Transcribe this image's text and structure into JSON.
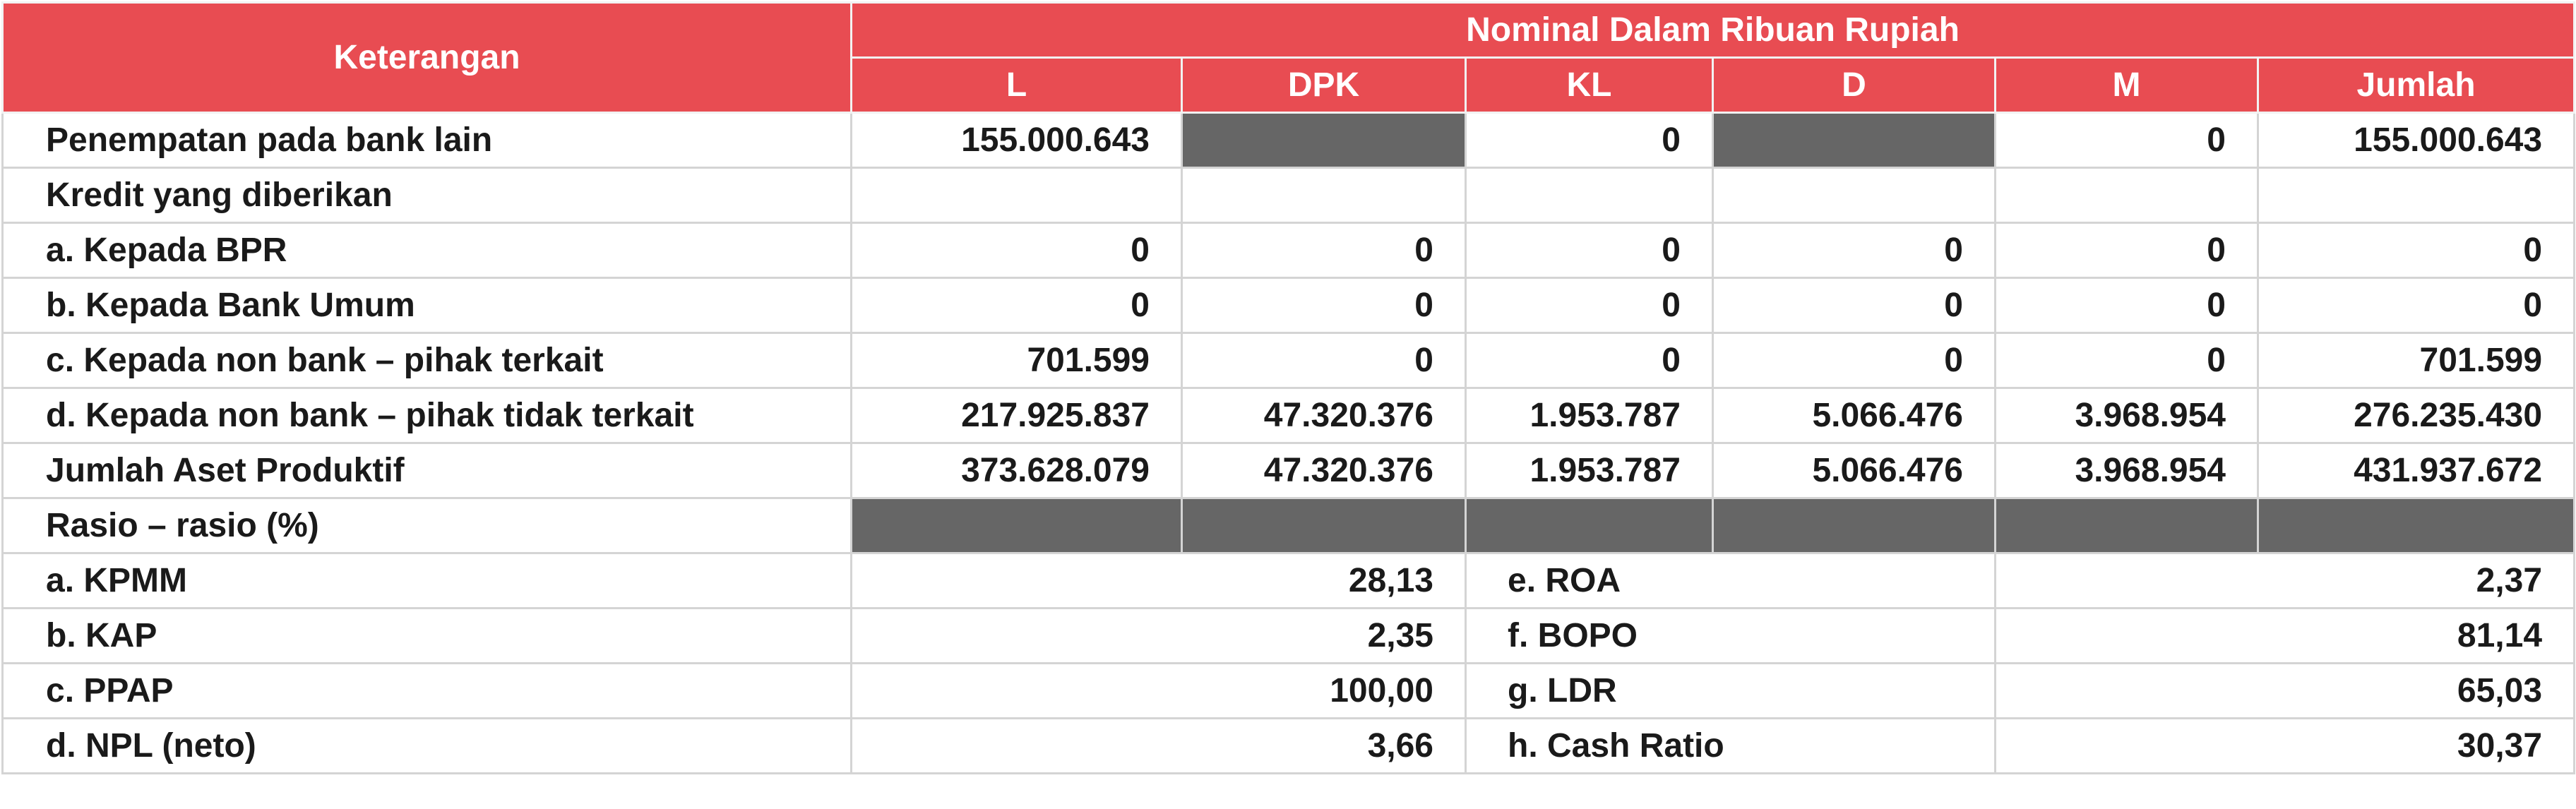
{
  "header": {
    "description_label": "Keterangan",
    "nominal_label": "Nominal Dalam Ribuan Rupiah",
    "columns": [
      "L",
      "DPK",
      "KL",
      "D",
      "M",
      "Jumlah"
    ]
  },
  "rows": {
    "penempatan": {
      "label": "Penempatan pada bank lain",
      "L": "155.000.643",
      "KL": "0",
      "M": "0",
      "Jumlah": "155.000.643"
    },
    "kredit_heading": {
      "label": "Kredit yang diberikan"
    },
    "kredit_bpr": {
      "label": "a. Kepada BPR",
      "values": [
        "0",
        "0",
        "0",
        "0",
        "0",
        "0"
      ]
    },
    "kredit_bank_umum": {
      "label": "b. Kepada Bank Umum",
      "values": [
        "0",
        "0",
        "0",
        "0",
        "0",
        "0"
      ]
    },
    "kredit_terkait": {
      "label": "c. Kepada non bank – pihak terkait",
      "values": [
        "701.599",
        "0",
        "0",
        "0",
        "0",
        "701.599"
      ]
    },
    "kredit_tidak_terkait": {
      "label": "d. Kepada non bank – pihak tidak terkait",
      "values": [
        "217.925.837",
        "47.320.376",
        "1.953.787",
        "5.066.476",
        "3.968.954",
        "276.235.430"
      ]
    },
    "jumlah_aset": {
      "label": "Jumlah Aset Produktif",
      "values": [
        "373.628.079",
        "47.320.376",
        "1.953.787",
        "5.066.476",
        "3.968.954",
        "431.937.672"
      ]
    }
  },
  "rasio": {
    "label": "Rasio – rasio (%)",
    "items": [
      {
        "left_label": "a. KPMM",
        "left_value": "28,13",
        "right_label": "e. ROA",
        "right_value": "2,37"
      },
      {
        "left_label": "b. KAP",
        "left_value": "2,35",
        "right_label": "f. BOPO",
        "right_value": "81,14"
      },
      {
        "left_label": "c. PPAP",
        "left_value": "100,00",
        "right_label": "g. LDR",
        "right_value": "65,03"
      },
      {
        "left_label": "d. NPL (neto)",
        "left_value": "3,66",
        "right_label": "h. Cash Ratio",
        "right_value": "30,37"
      }
    ]
  },
  "colors": {
    "header_red": "#e84c52",
    "shaded_grey": "#666666"
  }
}
